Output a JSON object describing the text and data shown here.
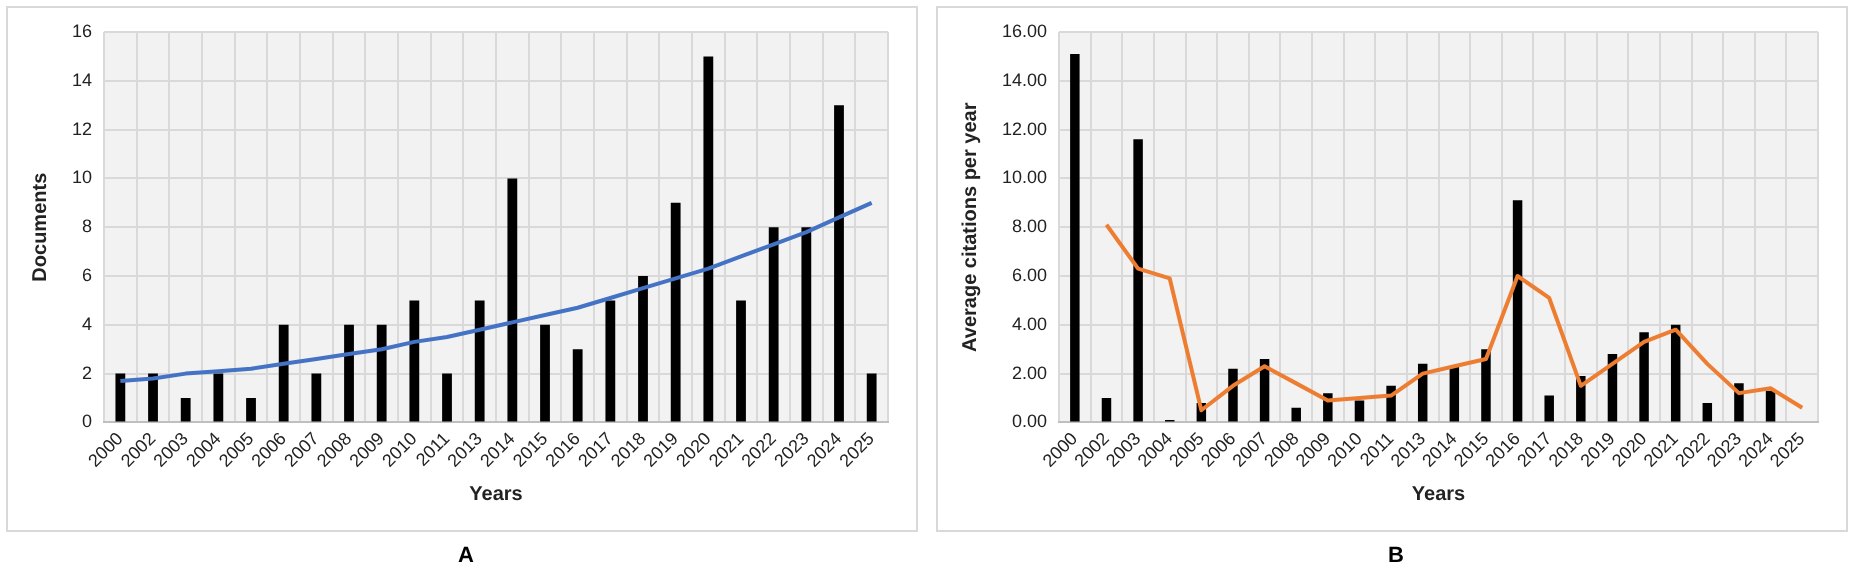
{
  "chart_data": [
    {
      "type": "bar",
      "xlabel": "Years",
      "ylabel": "Documents",
      "annotations": [
        "A"
      ],
      "grid": true,
      "legend": false,
      "categories": [
        "2000",
        "2002",
        "2003",
        "2004",
        "2005",
        "2006",
        "2007",
        "2008",
        "2009",
        "2010",
        "2011",
        "2013",
        "2014",
        "2015",
        "2016",
        "2017",
        "2018",
        "2019",
        "2020",
        "2021",
        "2022",
        "2023",
        "2024",
        "2025"
      ],
      "ylim": [
        0,
        16
      ],
      "yticks": [
        0,
        2,
        4,
        6,
        8,
        10,
        12,
        14,
        16
      ],
      "series": [
        {
          "color": "#000000",
          "values": [
            2,
            2,
            1,
            2,
            1,
            4,
            2,
            4,
            4,
            5,
            2,
            5,
            10,
            4,
            3,
            5,
            6,
            9,
            15,
            5,
            8,
            8,
            13,
            2
          ]
        },
        {
          "type": "line",
          "color": "#4472c4",
          "values": [
            1.7,
            1.8,
            2.0,
            2.1,
            2.2,
            2.4,
            2.6,
            2.8,
            3.0,
            3.3,
            3.5,
            3.8,
            4.1,
            4.4,
            4.7,
            5.1,
            5.5,
            5.9,
            6.3,
            6.8,
            7.3,
            7.8,
            8.4,
            9.0
          ]
        }
      ]
    },
    {
      "type": "bar",
      "xlabel": "Years",
      "ylabel": "Average citations per year",
      "annotations": [
        "B"
      ],
      "grid": true,
      "legend": false,
      "categories": [
        "2000",
        "2002",
        "2003",
        "2004",
        "2005",
        "2006",
        "2007",
        "2008",
        "2009",
        "2010",
        "2011",
        "2013",
        "2014",
        "2015",
        "2016",
        "2017",
        "2018",
        "2019",
        "2020",
        "2021",
        "2022",
        "2023",
        "2024",
        "2025"
      ],
      "ylim": [
        0,
        16
      ],
      "yticks": [
        {
          "value": 0,
          "label": "0.00"
        },
        {
          "value": 2,
          "label": "2.00"
        },
        {
          "value": 4,
          "label": "4.00"
        },
        {
          "value": 6,
          "label": "6.00"
        },
        {
          "value": 8,
          "label": "8.00"
        },
        {
          "value": 10,
          "label": "10.00"
        },
        {
          "value": 12,
          "label": "12.00"
        },
        {
          "value": 14,
          "label": "14.00"
        },
        {
          "value": 16,
          "label": "16.00"
        }
      ],
      "series": [
        {
          "color": "#000000",
          "values": [
            15.1,
            1.0,
            11.6,
            0.1,
            0.8,
            2.2,
            2.6,
            0.6,
            1.2,
            0.9,
            1.5,
            2.4,
            2.3,
            3.0,
            9.1,
            1.1,
            1.9,
            2.8,
            3.7,
            4.0,
            0.8,
            1.6,
            1.3,
            null
          ]
        },
        {
          "type": "line",
          "color": "#ed7d31",
          "values": [
            null,
            8.1,
            6.3,
            5.9,
            0.5,
            1.5,
            2.3,
            1.6,
            0.9,
            1.0,
            1.1,
            2.0,
            2.3,
            2.6,
            6.0,
            5.1,
            1.5,
            2.4,
            3.3,
            3.8,
            2.4,
            1.2,
            1.4,
            0.6
          ]
        }
      ]
    }
  ]
}
